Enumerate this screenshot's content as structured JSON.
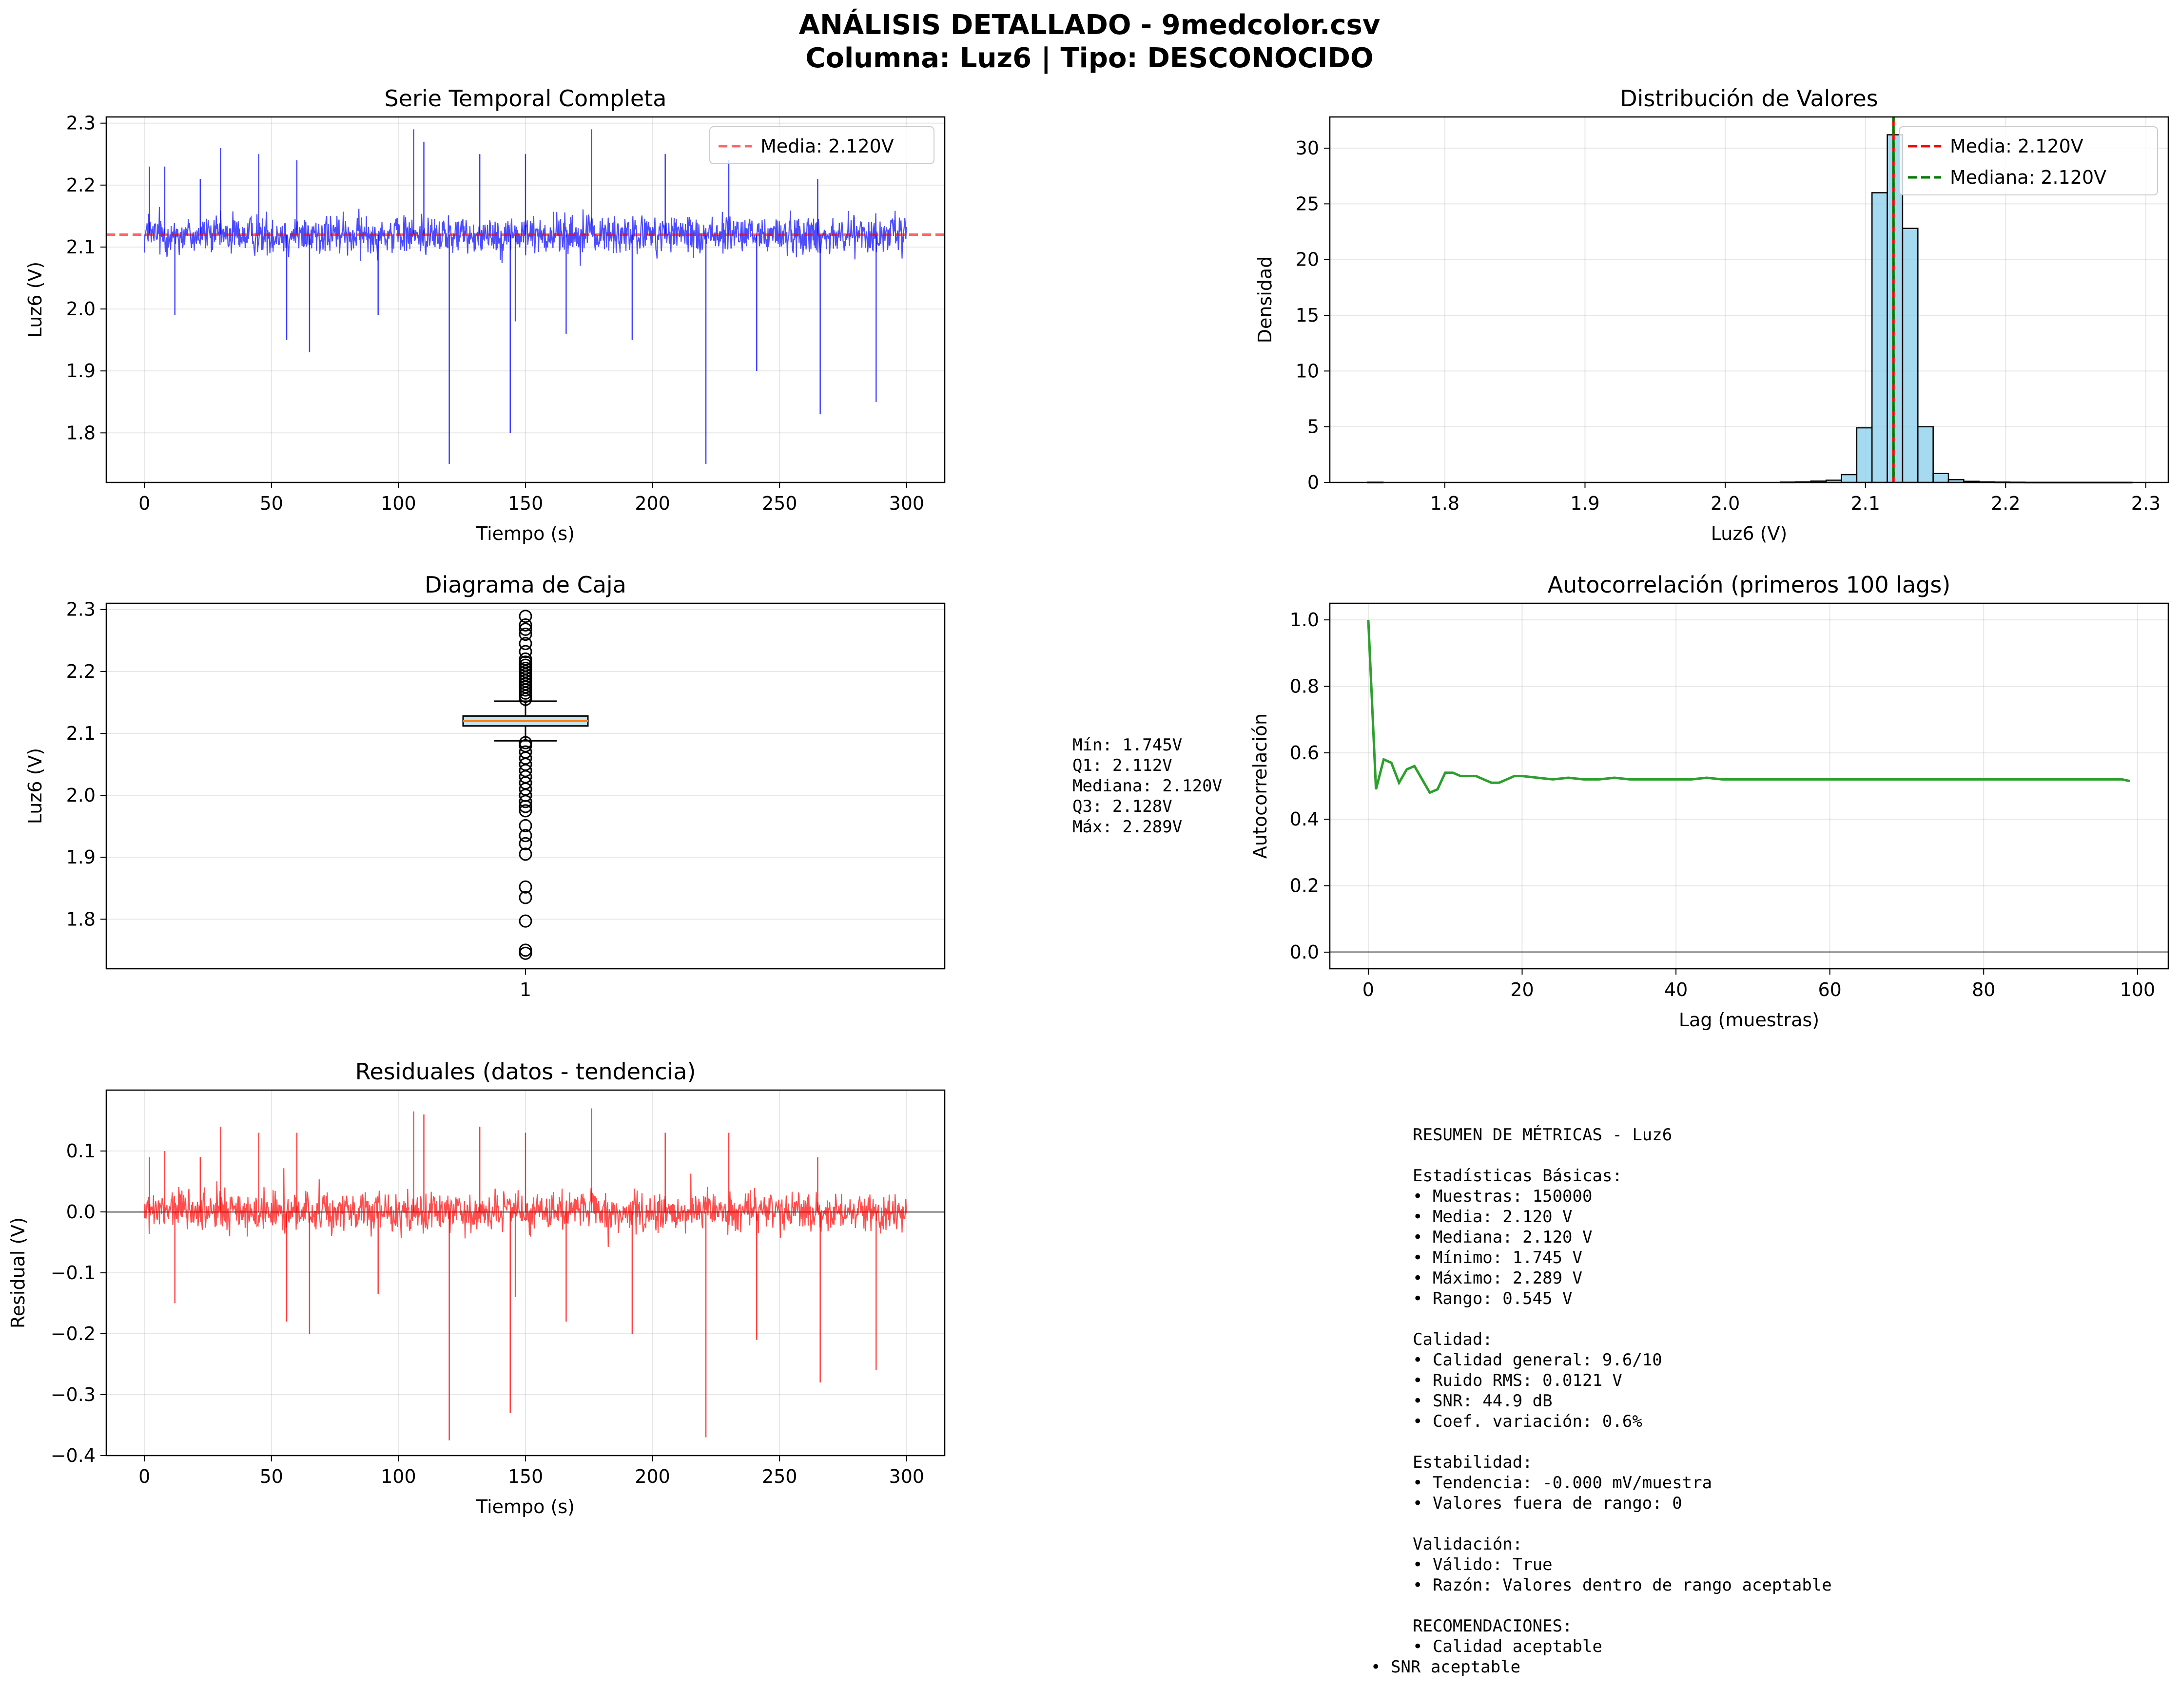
{
  "figure": {
    "title_line1": "ANÁLISIS DETALLADO - 9medcolor.csv",
    "title_line2": "Columna: Luz6 | Tipo: DESCONOCIDO"
  },
  "colors": {
    "series_blue": "#0000ff",
    "mean_line_red": "#ff0000",
    "hist_fill": "#87ceeb",
    "median_green": "#007a00",
    "acf_green": "#2ca02c",
    "residual_red": "#ff0000",
    "box_median": "#ff7f0e",
    "box_fill": "#add8e6"
  },
  "chart_data": [
    {
      "id": "ts",
      "type": "line",
      "title": "Serie Temporal Completa",
      "xlabel": "Tiempo (s)",
      "ylabel": "Luz6 (V)",
      "xlim": [
        -15,
        315
      ],
      "ylim": [
        1.72,
        2.31
      ],
      "xticks": [
        0,
        50,
        100,
        150,
        200,
        250,
        300
      ],
      "yticks": [
        1.8,
        1.9,
        2.0,
        2.1,
        2.2,
        2.3
      ],
      "ytick_labels": [
        "1.8",
        "1.9",
        "2.0",
        "2.1",
        "2.2",
        "2.3"
      ],
      "grid": true,
      "legend": "top-right",
      "series": [
        {
          "name": "Luz6",
          "x_start": 0,
          "x_end": 300,
          "center": 2.12,
          "band": 0.035
        }
      ],
      "mean_line": {
        "name": "Media: 2.120V",
        "value": 2.12
      },
      "spikes": [
        [
          2,
          2.23
        ],
        [
          8,
          2.23
        ],
        [
          12,
          1.99
        ],
        [
          22,
          2.21
        ],
        [
          30,
          2.26
        ],
        [
          45,
          2.25
        ],
        [
          56,
          1.95
        ],
        [
          60,
          2.24
        ],
        [
          65,
          1.93
        ],
        [
          92,
          1.99
        ],
        [
          106,
          2.29
        ],
        [
          110,
          2.27
        ],
        [
          120,
          1.75
        ],
        [
          132,
          2.25
        ],
        [
          144,
          1.8
        ],
        [
          146,
          1.98
        ],
        [
          150,
          2.25
        ],
        [
          166,
          1.96
        ],
        [
          176,
          2.29
        ],
        [
          192,
          1.95
        ],
        [
          205,
          2.25
        ],
        [
          221,
          1.75
        ],
        [
          230,
          2.24
        ],
        [
          241,
          1.9
        ],
        [
          265,
          2.21
        ],
        [
          266,
          1.83
        ],
        [
          288,
          1.85
        ]
      ]
    },
    {
      "id": "hist",
      "type": "bar",
      "title": "Distribución de Valores",
      "xlabel": "Luz6 (V)",
      "ylabel": "Densidad",
      "xlim": [
        1.718,
        2.316
      ],
      "ylim": [
        0,
        32.8
      ],
      "xticks": [
        1.8,
        1.9,
        2.0,
        2.1,
        2.2,
        2.3
      ],
      "xtick_labels": [
        "1.8",
        "1.9",
        "2.0",
        "2.1",
        "2.2",
        "2.3"
      ],
      "yticks": [
        0,
        5,
        10,
        15,
        20,
        25,
        30
      ],
      "grid": true,
      "legend": "top-right",
      "bin_start": 1.745,
      "bin_width": 0.0109,
      "values": [
        0.02,
        0,
        0,
        0,
        0,
        0,
        0,
        0,
        0,
        0,
        0,
        0,
        0,
        0,
        0,
        0,
        0,
        0,
        0,
        0,
        0,
        0,
        0,
        0,
        0,
        0,
        0,
        0.03,
        0.05,
        0.12,
        0.2,
        0.7,
        4.9,
        26,
        31.2,
        22.8,
        5,
        0.8,
        0.25,
        0.1,
        0.05,
        0.03,
        0.02,
        0.01,
        0.01,
        0.01,
        0.01,
        0.01,
        0.01,
        0.01
      ],
      "mean_line": {
        "name": "Media: 2.120V",
        "value": 2.12
      },
      "median_line": {
        "name": "Mediana: 2.120V",
        "value": 2.12
      }
    },
    {
      "id": "box",
      "type": "box",
      "title": "Diagrama de Caja",
      "ylabel": "Luz6 (V)",
      "xtick_label": "1",
      "ylim": [
        1.72,
        2.31
      ],
      "yticks": [
        1.8,
        1.9,
        2.0,
        2.1,
        2.2,
        2.3
      ],
      "ytick_labels": [
        "1.8",
        "1.9",
        "2.0",
        "2.1",
        "2.2",
        "2.3"
      ],
      "grid": true,
      "q1": 2.112,
      "median": 2.12,
      "q3": 2.128,
      "whisker_low": 2.088,
      "whisker_high": 2.152,
      "outliers": [
        1.745,
        1.75,
        1.797,
        1.835,
        1.852,
        1.905,
        1.922,
        1.935,
        1.951,
        1.975,
        1.982,
        1.99,
        2.0,
        2.01,
        2.02,
        2.03,
        2.04,
        2.05,
        2.06,
        2.07,
        2.08,
        2.085,
        2.155,
        2.16,
        2.165,
        2.17,
        2.175,
        2.18,
        2.185,
        2.19,
        2.195,
        2.2,
        2.205,
        2.21,
        2.215,
        2.22,
        2.232,
        2.245,
        2.26,
        2.268,
        2.275,
        2.289
      ],
      "stats_lines": [
        "Mín: 1.745V",
        "Q1: 2.112V",
        "Mediana: 2.120V",
        "Q3: 2.128V",
        "Máx: 2.289V"
      ]
    },
    {
      "id": "acf",
      "type": "line",
      "title": "Autocorrelación (primeros 100 lags)",
      "xlabel": "Lag (muestras)",
      "ylabel": "Autocorrelación",
      "xlim": [
        -5,
        104
      ],
      "ylim": [
        -0.05,
        1.05
      ],
      "xticks": [
        0,
        20,
        40,
        60,
        80,
        100
      ],
      "yticks": [
        0.0,
        0.2,
        0.4,
        0.6,
        0.8,
        1.0
      ],
      "ytick_labels": [
        "0.0",
        "0.2",
        "0.4",
        "0.6",
        "0.8",
        "1.0"
      ],
      "grid": true,
      "zero_line": 0,
      "x": [
        0,
        1,
        2,
        3,
        4,
        5,
        6,
        7,
        8,
        9,
        10,
        11,
        12,
        13,
        14,
        15,
        16,
        17,
        18,
        19,
        20,
        22,
        24,
        26,
        28,
        30,
        32,
        34,
        36,
        38,
        40,
        42,
        44,
        46,
        48,
        50,
        52,
        54,
        56,
        58,
        60,
        62,
        64,
        66,
        68,
        70,
        72,
        74,
        76,
        78,
        80,
        82,
        84,
        86,
        88,
        90,
        92,
        94,
        96,
        98,
        99
      ],
      "values": [
        1.0,
        0.49,
        0.58,
        0.57,
        0.51,
        0.55,
        0.56,
        0.52,
        0.48,
        0.49,
        0.54,
        0.54,
        0.53,
        0.53,
        0.53,
        0.52,
        0.51,
        0.51,
        0.52,
        0.53,
        0.53,
        0.525,
        0.52,
        0.525,
        0.52,
        0.52,
        0.525,
        0.52,
        0.52,
        0.52,
        0.52,
        0.52,
        0.525,
        0.52,
        0.52,
        0.52,
        0.52,
        0.52,
        0.52,
        0.52,
        0.52,
        0.52,
        0.52,
        0.52,
        0.52,
        0.52,
        0.52,
        0.52,
        0.52,
        0.52,
        0.52,
        0.52,
        0.52,
        0.52,
        0.52,
        0.52,
        0.52,
        0.52,
        0.52,
        0.52,
        0.515
      ]
    },
    {
      "id": "resid",
      "type": "line",
      "title": "Residuales (datos - tendencia)",
      "xlabel": "Tiempo (s)",
      "ylabel": "Residual (V)",
      "xlim": [
        -15,
        315
      ],
      "ylim": [
        -0.4,
        0.2
      ],
      "xticks": [
        0,
        50,
        100,
        150,
        200,
        250,
        300
      ],
      "yticks": [
        -0.4,
        -0.3,
        -0.2,
        -0.1,
        0.0,
        0.1
      ],
      "ytick_labels": [
        "−0.4",
        "−0.3",
        "−0.2",
        "−0.1",
        "0.0",
        "0.1"
      ],
      "grid": true,
      "zero_line": 0,
      "series": [
        {
          "name": "Residual",
          "x_start": 0,
          "x_end": 300,
          "center": 0,
          "band": 0.035
        }
      ],
      "spikes": [
        [
          2,
          0.09
        ],
        [
          8,
          0.1
        ],
        [
          12,
          -0.15
        ],
        [
          22,
          0.09
        ],
        [
          30,
          0.14
        ],
        [
          45,
          0.13
        ],
        [
          56,
          -0.18
        ],
        [
          60,
          0.13
        ],
        [
          65,
          -0.2
        ],
        [
          92,
          -0.135
        ],
        [
          106,
          0.165
        ],
        [
          110,
          0.16
        ],
        [
          120,
          -0.375
        ],
        [
          132,
          0.14
        ],
        [
          144,
          -0.33
        ],
        [
          146,
          -0.14
        ],
        [
          150,
          0.13
        ],
        [
          166,
          -0.18
        ],
        [
          176,
          0.17
        ],
        [
          192,
          -0.2
        ],
        [
          205,
          0.13
        ],
        [
          221,
          -0.37
        ],
        [
          230,
          0.13
        ],
        [
          241,
          -0.21
        ],
        [
          265,
          0.09
        ],
        [
          266,
          -0.28
        ],
        [
          288,
          -0.26
        ]
      ]
    }
  ],
  "summary": {
    "title": "RESUMEN DE MÉTRICAS - Luz6",
    "basic_header": "Estadísticas Básicas:",
    "basic_lines": [
      "• Muestras: 150000",
      "• Media: 2.120 V",
      "• Mediana: 2.120 V",
      "• Mínimo: 1.745 V",
      "• Máximo: 2.289 V",
      "• Rango: 0.545 V"
    ],
    "quality_header": "Calidad:",
    "quality_lines": [
      "• Calidad general: 9.6/10",
      "• Ruido RMS: 0.0121 V",
      "• SNR: 44.9 dB",
      "• Coef. variación: 0.6%"
    ],
    "stability_header": "Estabilidad:",
    "stability_lines": [
      "• Tendencia: -0.000 mV/muestra",
      "• Valores fuera de rango: 0"
    ],
    "validation_header": "Validación:",
    "validation_lines": [
      "• Válido: True",
      "• Razón: Valores dentro de rango aceptable"
    ],
    "reco_header": "RECOMENDACIONES:",
    "reco_lines": [
      "• Calidad aceptable"
    ],
    "reco_last": "• SNR aceptable"
  }
}
